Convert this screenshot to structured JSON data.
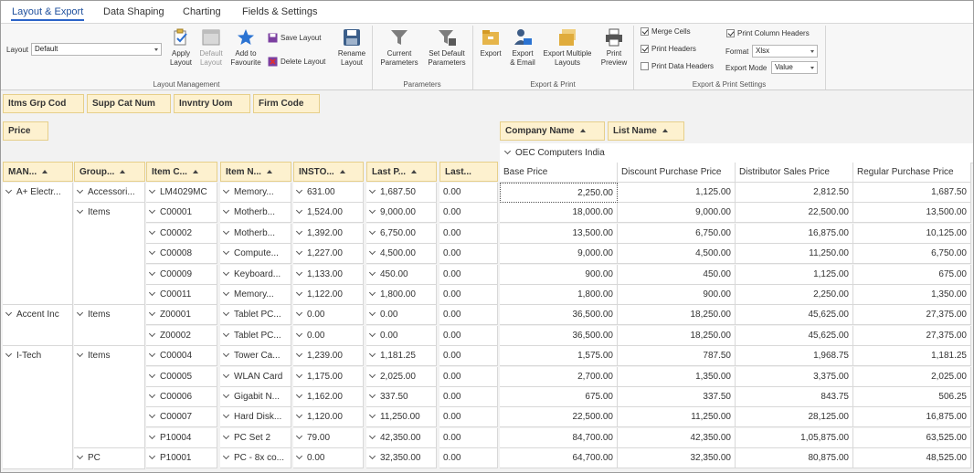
{
  "tabs": [
    "Layout & Export",
    "Data Shaping",
    "Charting",
    "Fields & Settings"
  ],
  "ribbon": {
    "layout_label": "Layout",
    "layout_value": "Default",
    "apply_layout": [
      "Apply",
      "Layout"
    ],
    "default_layout": [
      "Default",
      "Layout"
    ],
    "add_favourite": [
      "Add to",
      "Favourite"
    ],
    "save_layout": "Save Layout",
    "delete_layout": "Delete Layout",
    "rename_layout": [
      "Rename",
      "Layout"
    ],
    "group_layout": "Layout Management",
    "current_params": [
      "Current",
      "Parameters"
    ],
    "set_default_params": [
      "Set Default",
      "Parameters"
    ],
    "group_params": "Parameters",
    "export": "Export",
    "export_email": [
      "Export",
      "& Email"
    ],
    "export_multiple": [
      "Export Multiple",
      "Layouts"
    ],
    "print_preview": [
      "Print",
      "Preview"
    ],
    "group_export": "Export & Print",
    "merge_cells": "Merge Cells",
    "print_headers": "Print Headers",
    "print_data_headers": "Print Data Headers",
    "print_column_headers": "Print Column Headers",
    "format_label": "Format",
    "format_value": "Xlsx",
    "export_mode_label": "Export Mode",
    "export_mode_value": "Value",
    "group_settings": "Export & Print Settings"
  },
  "filter_fields": [
    "Itms Grp Cod",
    "Supp Cat Num",
    "Invntry Uom",
    "Firm Code"
  ],
  "data_field": "Price",
  "column_fields": [
    "Company Name",
    "List Name"
  ],
  "company_group": "OEC Computers India",
  "row_headers": [
    "MAN...",
    "Group...",
    "Item C...",
    "Item N...",
    "INSTO...",
    "Last P...",
    "Last..."
  ],
  "value_headers": [
    "Base Price",
    "Discount Purchase Price",
    "Distributor Sales Price",
    "Regular Purchase Price"
  ],
  "rows": [
    {
      "man": "A+ Electr...",
      "grp": "Accessori...",
      "code": "LM4029MC",
      "name": "Memory...",
      "insto": "631.00",
      "lastp": "1,687.50",
      "last": "0.00",
      "v": [
        "2,250.00",
        "1,125.00",
        "2,812.50",
        "1,687.50"
      ]
    },
    {
      "man": "",
      "grp": "Items",
      "code": "C00001",
      "name": "Motherb...",
      "insto": "1,524.00",
      "lastp": "9,000.00",
      "last": "0.00",
      "v": [
        "18,000.00",
        "9,000.00",
        "22,500.00",
        "13,500.00"
      ]
    },
    {
      "man": "",
      "grp": "",
      "code": "C00002",
      "name": "Motherb...",
      "insto": "1,392.00",
      "lastp": "6,750.00",
      "last": "0.00",
      "v": [
        "13,500.00",
        "6,750.00",
        "16,875.00",
        "10,125.00"
      ]
    },
    {
      "man": "",
      "grp": "",
      "code": "C00008",
      "name": "Compute...",
      "insto": "1,227.00",
      "lastp": "4,500.00",
      "last": "0.00",
      "v": [
        "9,000.00",
        "4,500.00",
        "11,250.00",
        "6,750.00"
      ]
    },
    {
      "man": "",
      "grp": "",
      "code": "C00009",
      "name": "Keyboard...",
      "insto": "1,133.00",
      "lastp": "450.00",
      "last": "0.00",
      "v": [
        "900.00",
        "450.00",
        "1,125.00",
        "675.00"
      ]
    },
    {
      "man": "",
      "grp": "",
      "code": "C00011",
      "name": "Memory...",
      "insto": "1,122.00",
      "lastp": "1,800.00",
      "last": "0.00",
      "v": [
        "1,800.00",
        "900.00",
        "2,250.00",
        "1,350.00"
      ]
    },
    {
      "man": "Accent Inc",
      "grp": "Items",
      "code": "Z00001",
      "name": "Tablet PC...",
      "insto": "0.00",
      "lastp": "0.00",
      "last": "0.00",
      "v": [
        "36,500.00",
        "18,250.00",
        "45,625.00",
        "27,375.00"
      ]
    },
    {
      "man": "",
      "grp": "",
      "code": "Z00002",
      "name": "Tablet PC...",
      "insto": "0.00",
      "lastp": "0.00",
      "last": "0.00",
      "v": [
        "36,500.00",
        "18,250.00",
        "45,625.00",
        "27,375.00"
      ]
    },
    {
      "man": "I-Tech",
      "grp": "Items",
      "code": "C00004",
      "name": "Tower Ca...",
      "insto": "1,239.00",
      "lastp": "1,181.25",
      "last": "0.00",
      "v": [
        "1,575.00",
        "787.50",
        "1,968.75",
        "1,181.25"
      ]
    },
    {
      "man": "",
      "grp": "",
      "code": "C00005",
      "name": "WLAN Card",
      "insto": "1,175.00",
      "lastp": "2,025.00",
      "last": "0.00",
      "v": [
        "2,700.00",
        "1,350.00",
        "3,375.00",
        "2,025.00"
      ]
    },
    {
      "man": "",
      "grp": "",
      "code": "C00006",
      "name": "Gigabit N...",
      "insto": "1,162.00",
      "lastp": "337.50",
      "last": "0.00",
      "v": [
        "675.00",
        "337.50",
        "843.75",
        "506.25"
      ]
    },
    {
      "man": "",
      "grp": "",
      "code": "C00007",
      "name": "Hard Disk...",
      "insto": "1,120.00",
      "lastp": "11,250.00",
      "last": "0.00",
      "v": [
        "22,500.00",
        "11,250.00",
        "28,125.00",
        "16,875.00"
      ]
    },
    {
      "man": "",
      "grp": "",
      "code": "P10004",
      "name": "PC Set 2",
      "insto": "79.00",
      "lastp": "42,350.00",
      "last": "0.00",
      "v": [
        "84,700.00",
        "42,350.00",
        "1,05,875.00",
        "63,525.00"
      ]
    },
    {
      "man": "",
      "grp": "PC",
      "code": "P10001",
      "name": "PC - 8x co...",
      "insto": "0.00",
      "lastp": "32,350.00",
      "last": "0.00",
      "v": [
        "64,700.00",
        "32,350.00",
        "80,875.00",
        "48,525.00"
      ]
    }
  ]
}
